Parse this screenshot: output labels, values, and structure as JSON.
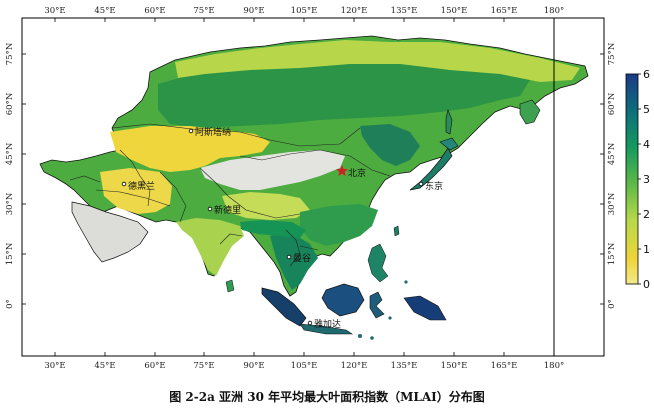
{
  "caption": "图 2-2a 亚洲 30 年平均最大叶面积指数（MLAI）分布图",
  "axes": {
    "lon_ticks": [
      "30°E",
      "45°E",
      "60°E",
      "75°E",
      "90°E",
      "105°E",
      "120°E",
      "135°E",
      "150°E",
      "165°E",
      "180°"
    ],
    "lat_ticks": [
      "75°N",
      "60°N",
      "45°N",
      "30°N",
      "15°N",
      "0°"
    ]
  },
  "colorbar": {
    "ticks": [
      "6",
      "5",
      "4",
      "3",
      "2",
      "1",
      "0"
    ],
    "min": 0,
    "max": 6,
    "colors": [
      "#f2d53a",
      "#cfe04a",
      "#8dc63f",
      "#3aa648",
      "#15845a",
      "#0f6a72",
      "#1f3f86"
    ]
  },
  "cities": [
    {
      "name": "阿斯塔纳",
      "id": "astana"
    },
    {
      "name": "北京",
      "id": "beijing"
    },
    {
      "name": "东京",
      "id": "tokyo"
    },
    {
      "name": "德黑兰",
      "id": "tehran"
    },
    {
      "name": "新德里",
      "id": "new-delhi"
    },
    {
      "name": "曼谷",
      "id": "bangkok"
    },
    {
      "name": "雅加达",
      "id": "jakarta"
    }
  ]
}
